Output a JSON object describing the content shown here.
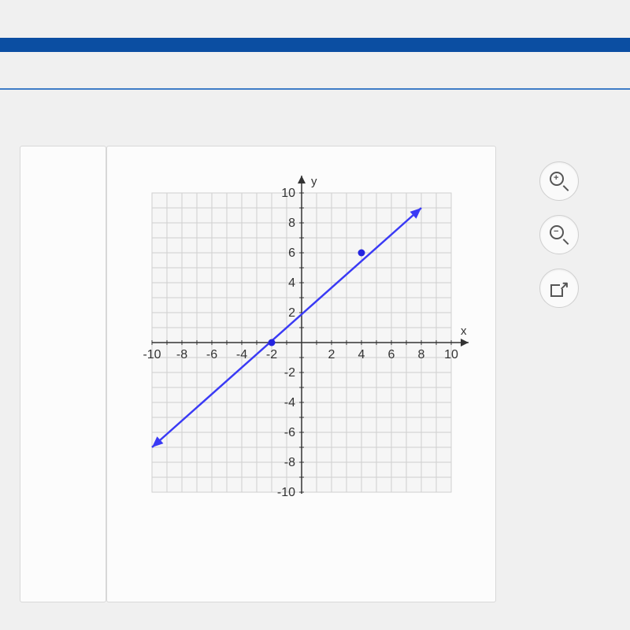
{
  "chart": {
    "type": "line",
    "x_label": "x",
    "y_label": "y",
    "xlim": [
      -10,
      10
    ],
    "ylim": [
      -10,
      10
    ],
    "grid_step": 1,
    "x_ticks": [
      -10,
      -8,
      -6,
      -4,
      -2,
      2,
      4,
      6,
      8,
      10
    ],
    "y_ticks": [
      -10,
      -8,
      -6,
      -4,
      -2,
      2,
      4,
      6,
      8,
      10
    ],
    "line_points": [
      [
        -10,
        -7
      ],
      [
        8,
        9
      ]
    ],
    "marked_points": [
      [
        -2,
        0
      ],
      [
        4,
        6
      ]
    ],
    "grid_bg": "#f6f6f6",
    "grid_line_color": "#cfcfcf",
    "axis_color": "#333333",
    "line_color": "#3a3af5",
    "point_fill": "#2424e0",
    "page_bg": "#f0f0f0",
    "top_bar_color": "#0b4ea2"
  },
  "tools": {
    "zoom_in": "+",
    "zoom_out": "−"
  }
}
